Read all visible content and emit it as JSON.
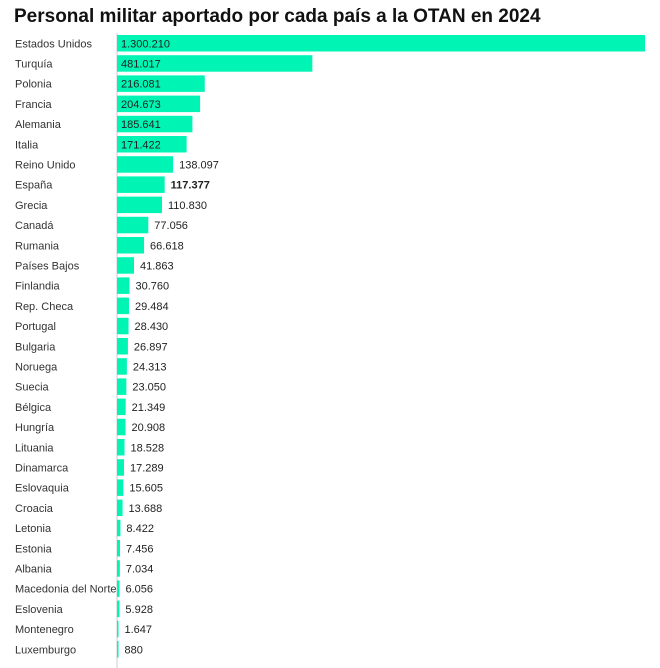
{
  "title": "Personal militar aportado por cada país a la OTAN en 2024",
  "chart_data": {
    "type": "bar",
    "orientation": "horizontal",
    "title": "Personal militar aportado por cada país a la OTAN en 2024",
    "bar_color": "#00f5b4",
    "highlight": "España",
    "categories": [
      "Estados Unidos",
      "Turquía",
      "Polonia",
      "Francia",
      "Alemania",
      "Italia",
      "Reino Unido",
      "España",
      "Grecia",
      "Canadá",
      "Rumania",
      "Países Bajos",
      "Finlandia",
      "Rep. Checa",
      "Portugal",
      "Bulgaria",
      "Noruega",
      "Suecia",
      "Bélgica",
      "Hungría",
      "Lituania",
      "Dinamarca",
      "Eslovaquia",
      "Croacia",
      "Letonia",
      "Estonia",
      "Albania",
      "Macedonia del Norte",
      "Eslovenia",
      "Montenegro",
      "Luxemburgo"
    ],
    "values": [
      1300210,
      481017,
      216081,
      204673,
      185641,
      171422,
      138097,
      117377,
      110830,
      77056,
      66618,
      41863,
      30760,
      29484,
      28430,
      26897,
      24313,
      23050,
      21349,
      20908,
      18528,
      17289,
      15605,
      13688,
      8422,
      7456,
      7034,
      6056,
      5928,
      1647,
      880
    ],
    "labels": [
      "1.300.210",
      "481.017",
      "216.081",
      "204.673",
      "185.641",
      "171.422",
      "138.097",
      "117.377",
      "110.830",
      "77.056",
      "66.618",
      "41.863",
      "30.760",
      "29.484",
      "28.430",
      "26.897",
      "24.313",
      "23.050",
      "21.349",
      "20.908",
      "18.528",
      "17.289",
      "15.605",
      "13.688",
      "8.422",
      "7.456",
      "7.034",
      "6.056",
      "5.928",
      "1.647",
      "880"
    ],
    "xlim": [
      0,
      1300210
    ]
  }
}
